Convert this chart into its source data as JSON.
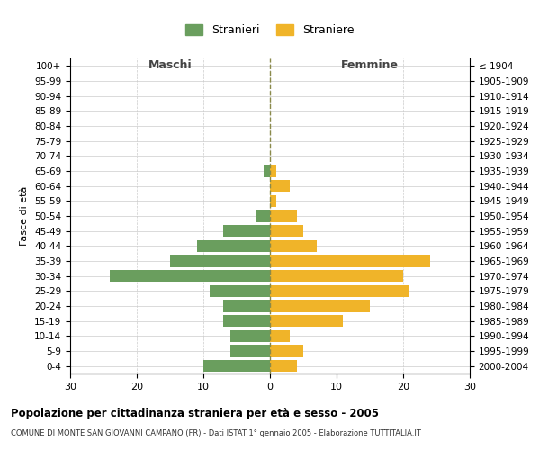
{
  "age_groups": [
    "100+",
    "95-99",
    "90-94",
    "85-89",
    "80-84",
    "75-79",
    "70-74",
    "65-69",
    "60-64",
    "55-59",
    "50-54",
    "45-49",
    "40-44",
    "35-39",
    "30-34",
    "25-29",
    "20-24",
    "15-19",
    "10-14",
    "5-9",
    "0-4"
  ],
  "birth_years": [
    "≤ 1904",
    "1905-1909",
    "1910-1914",
    "1915-1919",
    "1920-1924",
    "1925-1929",
    "1930-1934",
    "1935-1939",
    "1940-1944",
    "1945-1949",
    "1950-1954",
    "1955-1959",
    "1960-1964",
    "1965-1969",
    "1970-1974",
    "1975-1979",
    "1980-1984",
    "1985-1989",
    "1990-1994",
    "1995-1999",
    "2000-2004"
  ],
  "males": [
    0,
    0,
    0,
    0,
    0,
    0,
    0,
    1,
    0,
    0,
    2,
    7,
    11,
    15,
    24,
    9,
    7,
    7,
    6,
    6,
    10
  ],
  "females": [
    0,
    0,
    0,
    0,
    0,
    0,
    0,
    1,
    3,
    1,
    4,
    5,
    7,
    24,
    20,
    21,
    15,
    11,
    3,
    5,
    4
  ],
  "male_color": "#6a9e5e",
  "female_color": "#f0b429",
  "male_label": "Stranieri",
  "female_label": "Straniere",
  "title": "Popolazione per cittadinanza straniera per età e sesso - 2005",
  "subtitle": "COMUNE DI MONTE SAN GIOVANNI CAMPANO (FR) - Dati ISTAT 1° gennaio 2005 - Elaborazione TUTTITALIA.IT",
  "xlabel_left": "Maschi",
  "xlabel_right": "Femmine",
  "ylabel_left": "Fasce di età",
  "xlim": 30,
  "background_color": "#ffffff",
  "grid_color": "#cccccc",
  "bar_height": 0.8
}
